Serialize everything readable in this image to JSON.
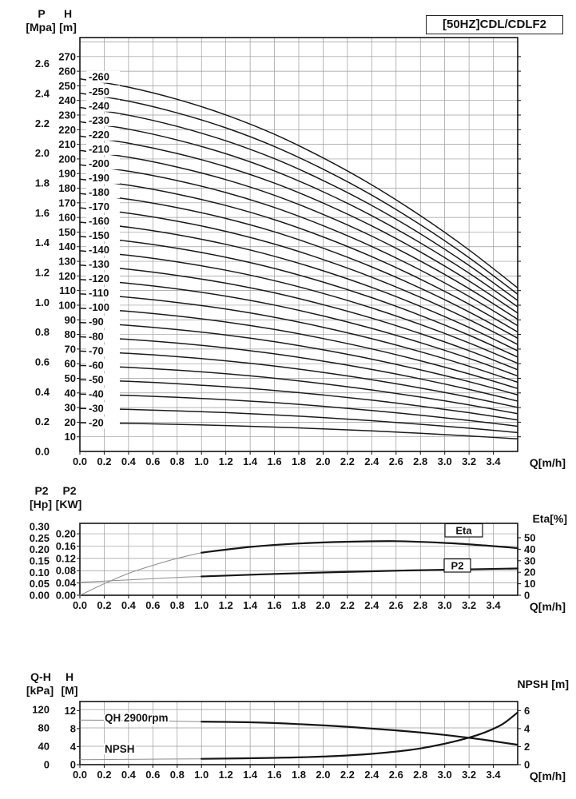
{
  "header": {
    "model_title": "[50HZ]CDL/CDLF2"
  },
  "axis_titles": {
    "main": {
      "p": "P",
      "p_unit": "[Mpa]",
      "h": "H",
      "h_unit": "[m]",
      "x": "Q[m/h]"
    },
    "power": {
      "hp": "P2",
      "hp_unit": "[Hp]",
      "kw": "P2",
      "kw_unit": "[KW]",
      "eta": "Eta[%]",
      "x": "Q[m/h]"
    },
    "bottom": {
      "qh": "Q-H",
      "qh_unit": "[kPa]",
      "h": "H",
      "h_unit": "[M]",
      "npsh": "NPSH [m]",
      "x": "Q[m/h]"
    }
  },
  "chart_data": [
    {
      "id": "qh-multistage-curves",
      "type": "line",
      "title": "[50HZ]CDL/CDLF2",
      "x_label": "Q[m/h]",
      "x_ticks": [
        "0.0",
        "0.2",
        "0.4",
        "0.6",
        "0.8",
        "1.0",
        "1.2",
        "1.4",
        "1.6",
        "1.8",
        "2.0",
        "2.2",
        "2.4",
        "2.6",
        "2.8",
        "3.0",
        "3.2",
        "3.4"
      ],
      "x_max": 3.6,
      "h_label": "H [m]",
      "h_ticks": [
        10,
        20,
        30,
        40,
        50,
        60,
        70,
        80,
        90,
        100,
        110,
        120,
        130,
        140,
        150,
        160,
        170,
        180,
        190,
        200,
        210,
        220,
        230,
        240,
        250,
        260,
        270
      ],
      "h_max": 283,
      "p_label": "P [Mpa]",
      "p_ticks": [
        "0.0",
        "0.2",
        "0.4",
        "0.6",
        "0.8",
        "1.0",
        "1.2",
        "1.4",
        "1.6",
        "1.8",
        "2.0",
        "2.2",
        "2.4",
        "2.6"
      ],
      "mpa_to_m": 101.97,
      "q_profile": [
        0,
        0.4,
        0.8,
        1.2,
        1.6,
        2.0,
        2.4,
        2.8,
        3.2,
        3.6
      ],
      "head_fraction": [
        0.98,
        0.958,
        0.926,
        0.885,
        0.834,
        0.772,
        0.701,
        0.62,
        0.53,
        0.43
      ],
      "series": [
        {
          "label": "-20",
          "shutoff_head_m": 20
        },
        {
          "label": "-30",
          "shutoff_head_m": 30
        },
        {
          "label": "-40",
          "shutoff_head_m": 40
        },
        {
          "label": "-50",
          "shutoff_head_m": 50
        },
        {
          "label": "-60",
          "shutoff_head_m": 60
        },
        {
          "label": "-70",
          "shutoff_head_m": 70
        },
        {
          "label": "-80",
          "shutoff_head_m": 80
        },
        {
          "label": "-90",
          "shutoff_head_m": 90
        },
        {
          "label": "-100",
          "shutoff_head_m": 100
        },
        {
          "label": "-110",
          "shutoff_head_m": 110
        },
        {
          "label": "-120",
          "shutoff_head_m": 120
        },
        {
          "label": "-130",
          "shutoff_head_m": 130
        },
        {
          "label": "-140",
          "shutoff_head_m": 140
        },
        {
          "label": "-150",
          "shutoff_head_m": 150
        },
        {
          "label": "-160",
          "shutoff_head_m": 160
        },
        {
          "label": "-170",
          "shutoff_head_m": 170
        },
        {
          "label": "-180",
          "shutoff_head_m": 180
        },
        {
          "label": "-190",
          "shutoff_head_m": 190
        },
        {
          "label": "-200",
          "shutoff_head_m": 200
        },
        {
          "label": "-210",
          "shutoff_head_m": 210
        },
        {
          "label": "-220",
          "shutoff_head_m": 220
        },
        {
          "label": "-230",
          "shutoff_head_m": 230
        },
        {
          "label": "-240",
          "shutoff_head_m": 240
        },
        {
          "label": "-250",
          "shutoff_head_m": 250
        },
        {
          "label": "-260",
          "shutoff_head_m": 260
        }
      ]
    },
    {
      "id": "power-and-efficiency",
      "type": "line",
      "x_label": "Q[m/h]",
      "x_ticks": [
        "0.0",
        "0.2",
        "0.4",
        "0.6",
        "0.8",
        "1.0",
        "1.2",
        "1.4",
        "1.6",
        "1.8",
        "2.0",
        "2.2",
        "2.4",
        "2.6",
        "2.8",
        "3.0",
        "3.2",
        "3.4"
      ],
      "x_max": 3.6,
      "hp_ticks": [
        "0.00",
        "0.05",
        "0.10",
        "0.15",
        "0.20",
        "0.25",
        "0.30"
      ],
      "kw_ticks": [
        "0.00",
        "0.04",
        "0.08",
        "0.12",
        "0.16",
        "0.20"
      ],
      "eta_ticks": [
        0,
        10,
        20,
        30,
        40,
        50
      ],
      "kw_axis_top": 0.234,
      "eta_axis_top": 62.5,
      "hp_per_kw": 1.341,
      "series": [
        {
          "name": "Eta",
          "axis": "eta",
          "boxed_label": "Eta",
          "thin": [
            [
              0,
              0
            ],
            [
              0.2,
              10
            ],
            [
              0.4,
              19
            ],
            [
              0.6,
              26
            ],
            [
              0.8,
              32
            ],
            [
              1,
              37
            ]
          ],
          "thick": [
            [
              1,
              37
            ],
            [
              1.4,
              42
            ],
            [
              1.8,
              45
            ],
            [
              2.2,
              46.5
            ],
            [
              2.6,
              47
            ],
            [
              3.0,
              45.5
            ],
            [
              3.3,
              43.5
            ],
            [
              3.6,
              41
            ]
          ]
        },
        {
          "name": "P2",
          "axis": "kw",
          "boxed_label": "P2",
          "thin": [
            [
              0,
              0.042
            ],
            [
              0.3,
              0.048
            ],
            [
              0.6,
              0.054
            ],
            [
              0.8,
              0.058
            ],
            [
              1,
              0.061
            ]
          ],
          "thick": [
            [
              1,
              0.061
            ],
            [
              1.5,
              0.068
            ],
            [
              2.0,
              0.074
            ],
            [
              2.5,
              0.079
            ],
            [
              3.0,
              0.083
            ],
            [
              3.6,
              0.087
            ]
          ]
        }
      ]
    },
    {
      "id": "single-stage-qh-and-npsh",
      "type": "line",
      "x_label": "Q[m/h]",
      "x_ticks": [
        "0.0",
        "0.2",
        "0.4",
        "0.6",
        "0.8",
        "1.0",
        "1.2",
        "1.4",
        "1.6",
        "1.8",
        "2.0",
        "2.2",
        "2.4",
        "2.6",
        "2.8",
        "3.0",
        "3.2",
        "3.4"
      ],
      "x_max": 3.6,
      "kpa_ticks": [
        0,
        40,
        80,
        120
      ],
      "m_ticks": [
        0,
        4,
        8,
        12
      ],
      "npsh_ticks": [
        0,
        2,
        4,
        6
      ],
      "kpa_axis_top": 137.4,
      "kpa_per_m": 9.807,
      "series": [
        {
          "name": "QH 2900rpm",
          "axis": "m",
          "label": "QH 2900rpm",
          "thin": [
            [
              0,
              9.9
            ],
            [
              0.5,
              9.8
            ],
            [
              1,
              9.55
            ]
          ],
          "thick": [
            [
              1,
              9.55
            ],
            [
              1.4,
              9.4
            ],
            [
              1.8,
              9.0
            ],
            [
              2.2,
              8.4
            ],
            [
              2.6,
              7.6
            ],
            [
              3.0,
              6.6
            ],
            [
              3.3,
              5.6
            ],
            [
              3.6,
              4.4
            ]
          ]
        },
        {
          "name": "NPSH",
          "axis": "npsh",
          "label": "NPSH",
          "thin": [
            [
              0,
              0.55
            ],
            [
              0.5,
              0.6
            ],
            [
              1,
              0.65
            ]
          ],
          "thick": [
            [
              1,
              0.65
            ],
            [
              1.6,
              0.75
            ],
            [
              2.0,
              0.9
            ],
            [
              2.4,
              1.2
            ],
            [
              2.8,
              1.8
            ],
            [
              3.2,
              3.0
            ],
            [
              3.45,
              4.3
            ],
            [
              3.6,
              5.8
            ]
          ]
        }
      ]
    }
  ]
}
